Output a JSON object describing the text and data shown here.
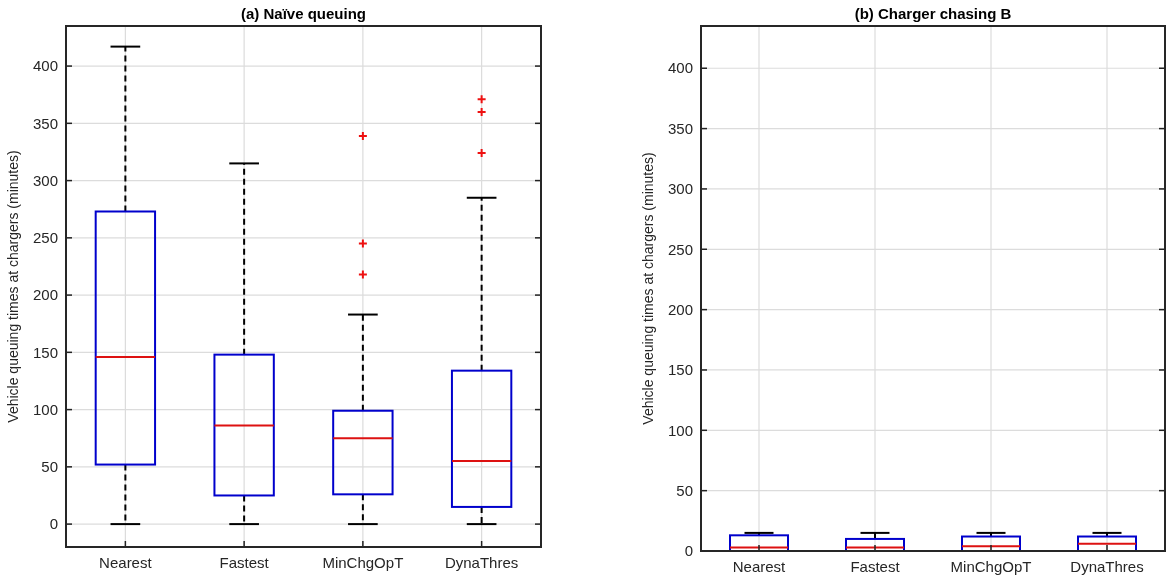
{
  "chart_data": [
    {
      "type": "box",
      "title": "(a) Naïve queuing",
      "ylabel": "Vehicle queuing times at chargers (minutes)",
      "categories": [
        "Nearest",
        "Fastest",
        "MinChgOpT",
        "DynaThres"
      ],
      "ylim": [
        -20,
        435
      ],
      "yticks": [
        0,
        50,
        100,
        150,
        200,
        250,
        300,
        350,
        400
      ],
      "grid": true,
      "boxes": [
        {
          "low": 0,
          "q1": 52,
          "median": 146,
          "q3": 273,
          "high": 417
        },
        {
          "low": 0,
          "q1": 25,
          "median": 86,
          "q3": 148,
          "high": 315
        },
        {
          "low": 0,
          "q1": 26,
          "median": 75,
          "q3": 99,
          "high": 183,
          "outliers": [
            218,
            245,
            339
          ]
        },
        {
          "low": 0,
          "q1": 15,
          "median": 55,
          "q3": 134,
          "high": 285,
          "outliers": [
            324,
            360,
            371
          ]
        }
      ]
    },
    {
      "type": "box",
      "title": "(b) Charger chasing B",
      "ylabel": "Vehicle queuing times at chargers (minutes)",
      "categories": [
        "Nearest",
        "Fastest",
        "MinChgOpT",
        "DynaThres"
      ],
      "ylim": [
        0,
        435
      ],
      "yticks": [
        0,
        50,
        100,
        150,
        200,
        250,
        300,
        350,
        400
      ],
      "grid": true,
      "boxes": [
        {
          "low": 0,
          "q1": 0,
          "median": 3,
          "q3": 13,
          "high": 15
        },
        {
          "low": 0,
          "q1": 0,
          "median": 3,
          "q3": 10,
          "high": 15
        },
        {
          "low": 0,
          "q1": 0,
          "median": 4,
          "q3": 12,
          "high": 15
        },
        {
          "low": 0,
          "q1": 0,
          "median": 6,
          "q3": 12,
          "high": 15
        }
      ]
    }
  ]
}
